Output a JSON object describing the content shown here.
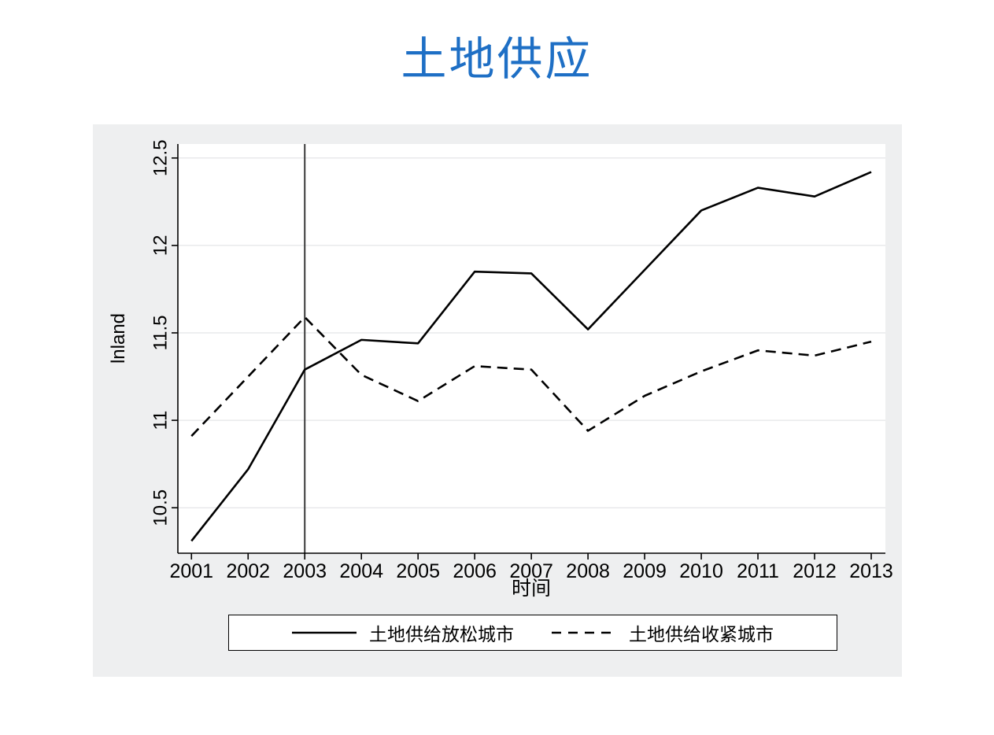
{
  "title": "土地供应",
  "colors": {
    "title": "#1e6fc5",
    "figure_background": "#eeeff0",
    "plot_background": "#ffffff",
    "gridline": "#e4e5e7",
    "axis": "#000000",
    "series_line": "#000000",
    "reference_line": "#3a3a3a"
  },
  "chart_data": {
    "type": "line",
    "title": "土地供应",
    "xlabel": "时间",
    "ylabel": "lnland",
    "x": [
      2001,
      2002,
      2003,
      2004,
      2005,
      2006,
      2007,
      2008,
      2009,
      2010,
      2011,
      2012,
      2013
    ],
    "series": [
      {
        "name": "土地供给放松城市",
        "style": "solid",
        "values": [
          10.31,
          10.72,
          11.29,
          11.46,
          11.44,
          11.85,
          11.84,
          11.52,
          11.86,
          12.2,
          12.33,
          12.28,
          12.42
        ]
      },
      {
        "name": "土地供给收紧城市",
        "style": "dashed",
        "values": [
          10.91,
          11.25,
          11.59,
          11.26,
          11.11,
          11.31,
          11.29,
          10.94,
          11.14,
          11.28,
          11.4,
          11.37,
          11.45
        ]
      }
    ],
    "yticks": [
      10.5,
      11,
      11.5,
      12,
      12.5
    ],
    "xticks": [
      2001,
      2002,
      2003,
      2004,
      2005,
      2006,
      2007,
      2008,
      2009,
      2010,
      2011,
      2012,
      2013
    ],
    "ylim": [
      10.24,
      12.58
    ],
    "xlim": [
      2000.76,
      2013.25
    ],
    "reference_line_x": 2003,
    "grid": true,
    "legend_position": "bottom"
  }
}
